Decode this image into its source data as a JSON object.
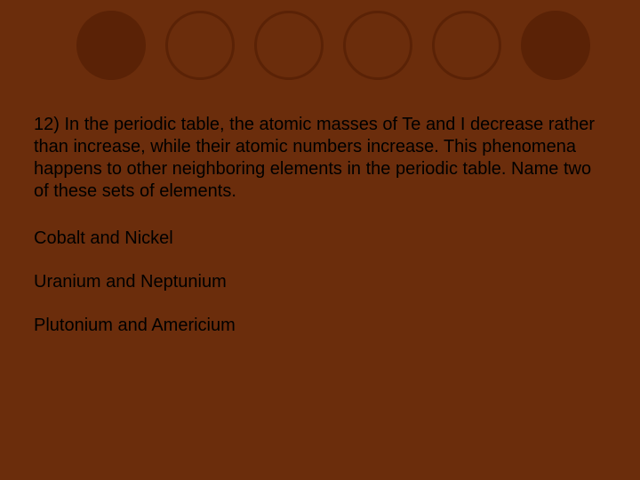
{
  "background_color": "#6b2d0c",
  "circle_dark_color": "#5a2206",
  "text_color": "#000000",
  "font_size": 20,
  "circles": [
    {
      "type": "filled"
    },
    {
      "type": "outline"
    },
    {
      "type": "outline"
    },
    {
      "type": "outline"
    },
    {
      "type": "outline"
    },
    {
      "type": "filled"
    }
  ],
  "question": "12) In the periodic table, the atomic masses of Te and I decrease rather than increase, while their atomic numbers increase. This phenomena happens to other neighboring elements in the periodic table. Name two of these sets of elements.",
  "answers": [
    "Cobalt  and Nickel",
    "Uranium and Neptunium",
    "Plutonium and Americium"
  ]
}
